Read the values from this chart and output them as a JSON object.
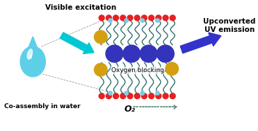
{
  "bg_color": "#ffffff",
  "text_visible_excitation": "Visible excitation",
  "text_upconverted": "Upconverted\nUV emission",
  "text_coassembly": "Co-assembly in water",
  "text_oxygen_blocking": "Oxygen blocking",
  "text_o2": "O₂",
  "water_drop_color": "#5dd0e8",
  "cyan_arrow_color": "#00c8d2",
  "blue_arrow_color": "#3333cc",
  "membrane_color": "#2e6e6b",
  "red_bead_color": "#e82020",
  "light_blue_bead_color": "#7ecce8",
  "blue_circle_color": "#3333bb",
  "gold_circle_color": "#d4a010",
  "dashed_line_color": "#999999",
  "o2_arrow_color": "#5a8a7a",
  "figsize": [
    3.71,
    1.89
  ],
  "dpi": 100,
  "xlim": [
    0,
    10
  ],
  "ylim": [
    0,
    5
  ]
}
